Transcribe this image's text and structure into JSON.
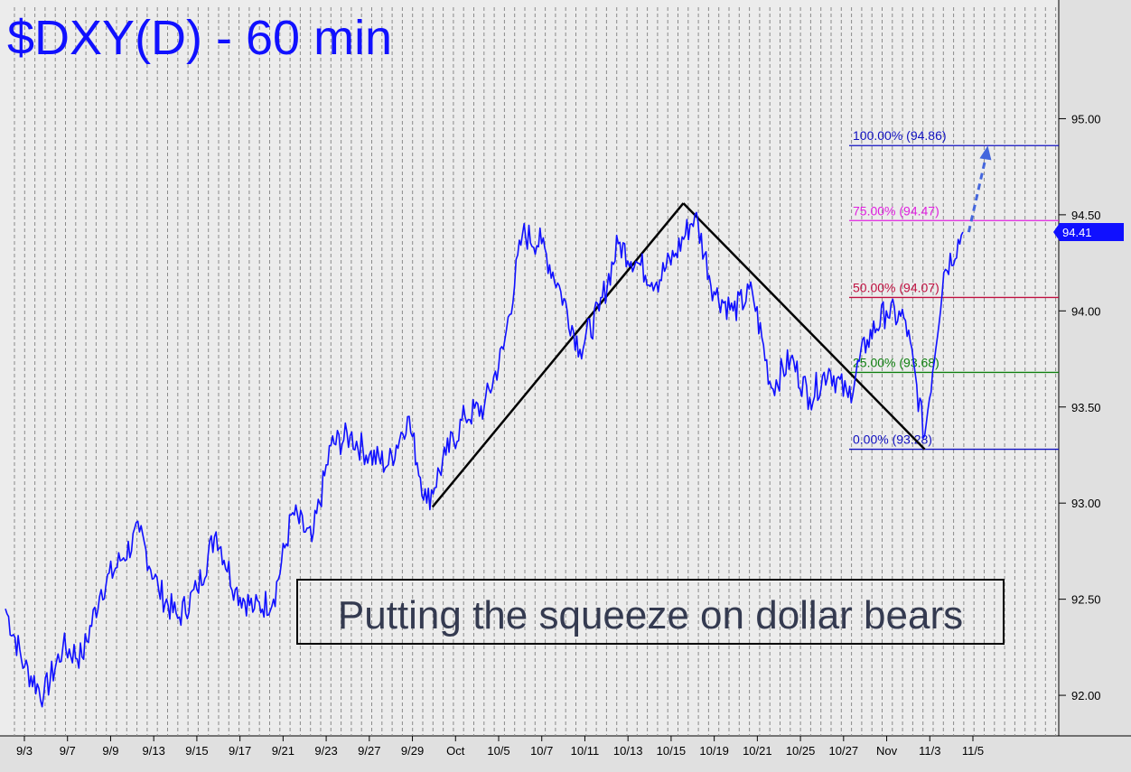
{
  "chart_data": {
    "type": "line",
    "title": "$DXY(D) - 60 min",
    "annotation": "Putting the squeeze on dollar bears",
    "xlabel": "",
    "ylabel": "",
    "ylim": [
      91.85,
      95.5
    ],
    "y_ticks": [
      92.0,
      92.5,
      93.0,
      93.5,
      94.0,
      94.5,
      95.0
    ],
    "y_tick_labels": [
      "92.00",
      "92.50",
      "93.00",
      "93.50",
      "94.00",
      "94.50",
      "95.00"
    ],
    "x_tick_labels": [
      "9/3",
      "9/7",
      "9/9",
      "9/13",
      "9/15",
      "9/17",
      "9/21",
      "9/23",
      "9/27",
      "9/29",
      "Oct",
      "10/5",
      "10/7",
      "10/11",
      "10/13",
      "10/15",
      "10/19",
      "10/21",
      "10/25",
      "10/27",
      "Nov",
      "11/3",
      "11/5"
    ],
    "grid": "vertical dashed",
    "last_value": "94.41",
    "series": [
      {
        "color": "#1010ff",
        "x": [
          0,
          1,
          2,
          3,
          4,
          5,
          6,
          7,
          8,
          9,
          10,
          11,
          12,
          13,
          14,
          15,
          16,
          17,
          18,
          19,
          20,
          21,
          22,
          23,
          24,
          25,
          26,
          27,
          28,
          29,
          30,
          31,
          32,
          33,
          34,
          35,
          36,
          37,
          38,
          39,
          40,
          41,
          42,
          43,
          44,
          45,
          46,
          47,
          48,
          49,
          50
        ],
        "values": [
          92.45,
          92.15,
          92.0,
          92.25,
          92.2,
          92.55,
          92.7,
          92.85,
          92.55,
          92.4,
          92.55,
          92.85,
          92.55,
          92.45,
          92.5,
          92.95,
          92.8,
          93.3,
          93.35,
          93.25,
          93.2,
          93.45,
          93.0,
          93.25,
          93.45,
          93.5,
          93.8,
          94.4,
          94.35,
          94.1,
          93.8,
          94.0,
          94.35,
          94.25,
          94.15,
          94.3,
          94.5,
          94.1,
          94.0,
          94.1,
          93.6,
          93.75,
          93.55,
          93.7,
          93.55,
          93.85,
          94.0,
          93.95,
          93.35,
          94.2,
          94.41
        ]
      }
    ],
    "fib_levels": [
      {
        "label": "100.00% (94.86)",
        "value": 94.86,
        "color": "#1010c0"
      },
      {
        "label": "75.00% (94.47)",
        "value": 94.47,
        "color": "#e020e0"
      },
      {
        "label": "50.00% (94.07)",
        "value": 94.07,
        "color": "#c01040"
      },
      {
        "label": "25.00% (93.68)",
        "value": 93.68,
        "color": "#108010"
      },
      {
        "label": "0.00% (93.28)",
        "value": 93.28,
        "color": "#1010c0"
      }
    ],
    "pattern_lines": [
      {
        "from": [
          22.3,
          92.98
        ],
        "to": [
          35.4,
          94.56
        ]
      },
      {
        "from": [
          35.4,
          94.56
        ],
        "to": [
          48.0,
          93.28
        ]
      }
    ],
    "projection": {
      "from": [
        50.3,
        94.41
      ],
      "to": [
        51.2,
        94.85
      ],
      "style": "dashed arrow"
    }
  }
}
